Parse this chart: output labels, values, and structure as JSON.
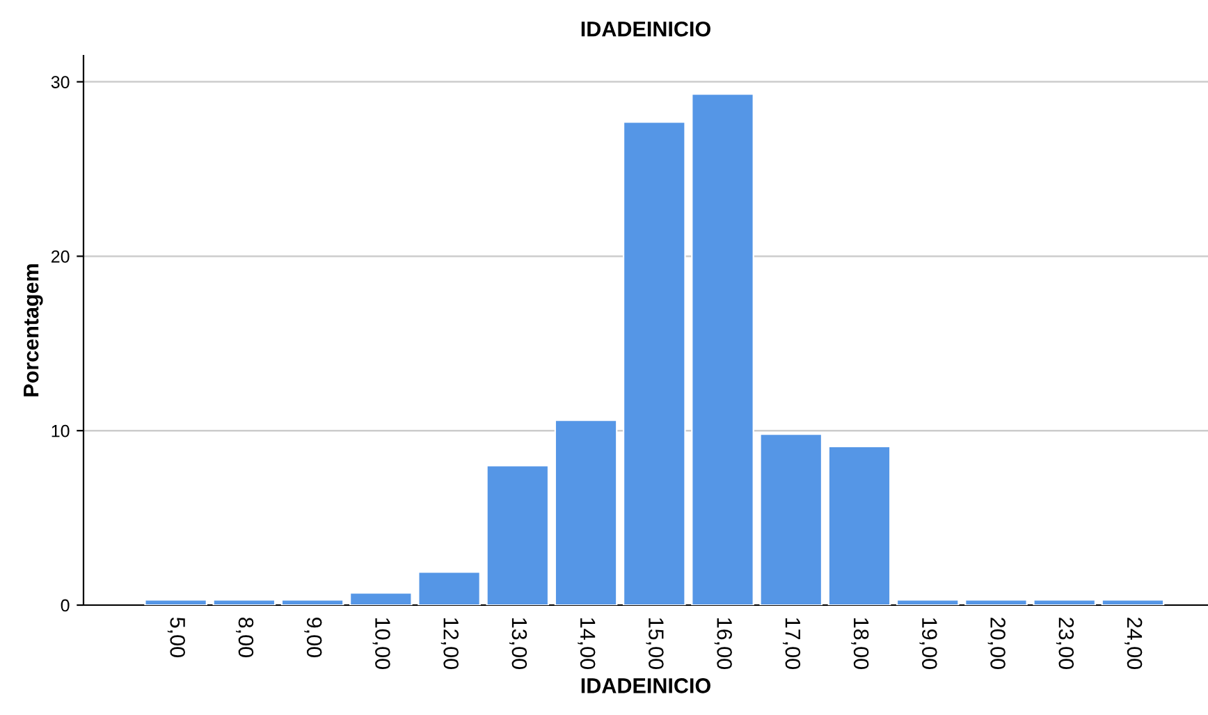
{
  "chart_data": {
    "type": "bar",
    "title": "IDADEINICIO",
    "xlabel": "IDADEINICIO",
    "ylabel": "Porcentagem",
    "categories": [
      "5,00",
      "8,00",
      "9,00",
      "10,00",
      "12,00",
      "13,00",
      "14,00",
      "15,00",
      "16,00",
      "17,00",
      "18,00",
      "19,00",
      "20,00",
      "23,00",
      "24,00"
    ],
    "values": [
      0.3,
      0.3,
      0.3,
      0.7,
      1.9,
      8.0,
      10.6,
      27.7,
      29.3,
      9.8,
      9.1,
      0.3,
      0.3,
      0.3,
      0.3
    ],
    "color": "#5596e6",
    "ylim": [
      0,
      31.5
    ],
    "yticks": [
      0,
      10,
      20,
      30
    ],
    "grid": "y",
    "legend": false
  }
}
